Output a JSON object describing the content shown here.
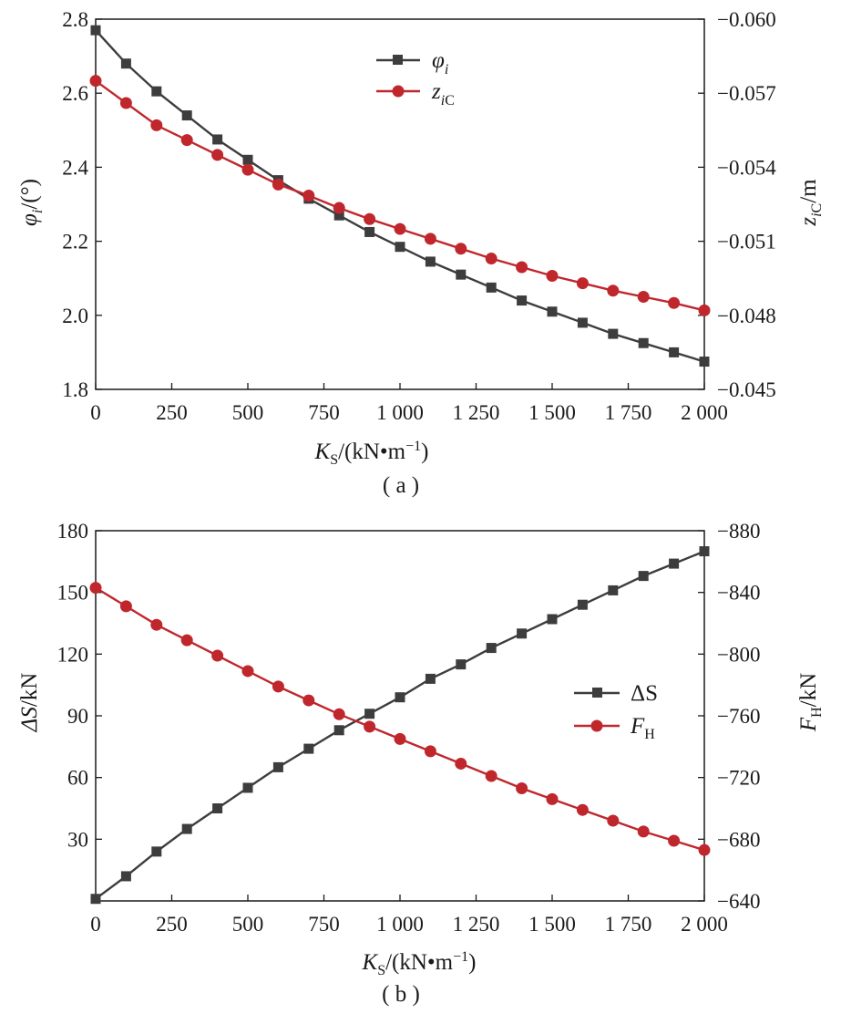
{
  "chart_data": [
    {
      "type": "line",
      "panel_label": "( a )",
      "title": "",
      "x": [
        0,
        100,
        200,
        300,
        400,
        500,
        600,
        700,
        800,
        900,
        1000,
        1100,
        1200,
        1300,
        1400,
        1500,
        1600,
        1700,
        1800,
        1900,
        2000
      ],
      "xlim": [
        0,
        2000
      ],
      "xticks": [
        0,
        250,
        500,
        750,
        1000,
        1250,
        1500,
        1750,
        2000
      ],
      "xtick_labels": [
        "0",
        "250",
        "500",
        "750",
        "1 000",
        "1 250",
        "1 500",
        "1 750",
        "2 000"
      ],
      "xlabel": {
        "main": "K",
        "sub": "S",
        "unit": "/(kN•m",
        "sup": "−1",
        "close": ")"
      },
      "ylabel_left": {
        "main": "φ",
        "sub": "i",
        "unit": "/(°)"
      },
      "ylabel_right": {
        "main": "z",
        "sub_i": "i",
        "sub_c": "C",
        "unit": "/m"
      },
      "ylim_left": [
        1.8,
        2.8
      ],
      "yticks_left": [
        1.8,
        2.0,
        2.2,
        2.4,
        2.6,
        2.8
      ],
      "ytick_labels_left": [
        "1.8",
        "2.0",
        "2.2",
        "2.4",
        "2.6",
        "2.8"
      ],
      "ylim_right": [
        -0.045,
        -0.06
      ],
      "yticks_right": [
        -0.045,
        -0.048,
        -0.051,
        -0.054,
        -0.057,
        -0.06
      ],
      "ytick_labels_right": [
        "−0.045",
        "−0.048",
        "−0.051",
        "−0.054",
        "−0.057",
        "−0.060"
      ],
      "grid": false,
      "legend_position": "top-center",
      "series": [
        {
          "legend_main": "φ",
          "legend_sub": "i",
          "axis": "left",
          "marker": "square",
          "color": "#3d3d3d",
          "values": [
            2.77,
            2.68,
            2.605,
            2.54,
            2.475,
            2.42,
            2.365,
            2.315,
            2.27,
            2.225,
            2.185,
            2.145,
            2.11,
            2.075,
            2.04,
            2.01,
            1.98,
            1.95,
            1.925,
            1.9,
            1.875
          ]
        },
        {
          "legend_main": "z",
          "legend_sub_i": "i",
          "legend_sub_c": "C",
          "axis": "right",
          "marker": "circle",
          "color": "#c0272d",
          "values": [
            -0.0575,
            -0.0566,
            -0.0557,
            -0.0551,
            -0.0545,
            -0.0539,
            -0.0533,
            -0.05285,
            -0.05235,
            -0.0519,
            -0.0515,
            -0.0511,
            -0.0507,
            -0.0503,
            -0.04995,
            -0.0496,
            -0.0493,
            -0.049,
            -0.04875,
            -0.0485,
            -0.0482
          ]
        }
      ]
    },
    {
      "type": "line",
      "panel_label": "( b )",
      "title": "",
      "x": [
        0,
        100,
        200,
        300,
        400,
        500,
        600,
        700,
        800,
        900,
        1000,
        1100,
        1200,
        1300,
        1400,
        1500,
        1600,
        1700,
        1800,
        1900,
        2000
      ],
      "xlim": [
        0,
        2000
      ],
      "xticks": [
        0,
        250,
        500,
        750,
        1000,
        1250,
        1500,
        1750,
        2000
      ],
      "xtick_labels": [
        "0",
        "250",
        "500",
        "750",
        "1 000",
        "1 250",
        "1 500",
        "1 750",
        "2 000"
      ],
      "xlabel": {
        "main": "K",
        "sub": "S",
        "unit": "/(kN•m",
        "sup": "−1",
        "close": ")"
      },
      "ylabel_left": {
        "main": "ΔS",
        "unit": "/kN"
      },
      "ylabel_right": {
        "main": "F",
        "sub": "H",
        "unit": "/kN"
      },
      "ylim_left": [
        0,
        180
      ],
      "yticks_left": [
        30,
        60,
        90,
        120,
        150,
        180
      ],
      "ytick_labels_left": [
        "30",
        "60",
        "90",
        "120",
        "150",
        "180"
      ],
      "ylim_right": [
        -640,
        -880
      ],
      "yticks_right": [
        -640,
        -680,
        -720,
        -760,
        -800,
        -840,
        -880
      ],
      "ytick_labels_right": [
        "−640",
        "−680",
        "−720",
        "−760",
        "−800",
        "−840",
        "−880"
      ],
      "grid": false,
      "legend_position": "center-right",
      "series": [
        {
          "legend_main": "ΔS",
          "axis": "left",
          "marker": "square",
          "color": "#3d3d3d",
          "values": [
            1,
            12,
            24,
            35,
            45,
            55,
            65,
            74,
            83,
            91,
            99,
            108,
            115,
            123,
            130,
            137,
            144,
            151,
            158,
            164,
            170
          ]
        },
        {
          "legend_main": "F",
          "legend_sub": "H",
          "axis": "right",
          "marker": "circle",
          "color": "#c0272d",
          "values": [
            -843,
            -831,
            -819,
            -809,
            -799,
            -789,
            -779,
            -770,
            -761,
            -753,
            -745,
            -737,
            -729,
            -721,
            -713,
            -706,
            -699,
            -692,
            -685,
            -679,
            -673
          ]
        }
      ]
    }
  ]
}
